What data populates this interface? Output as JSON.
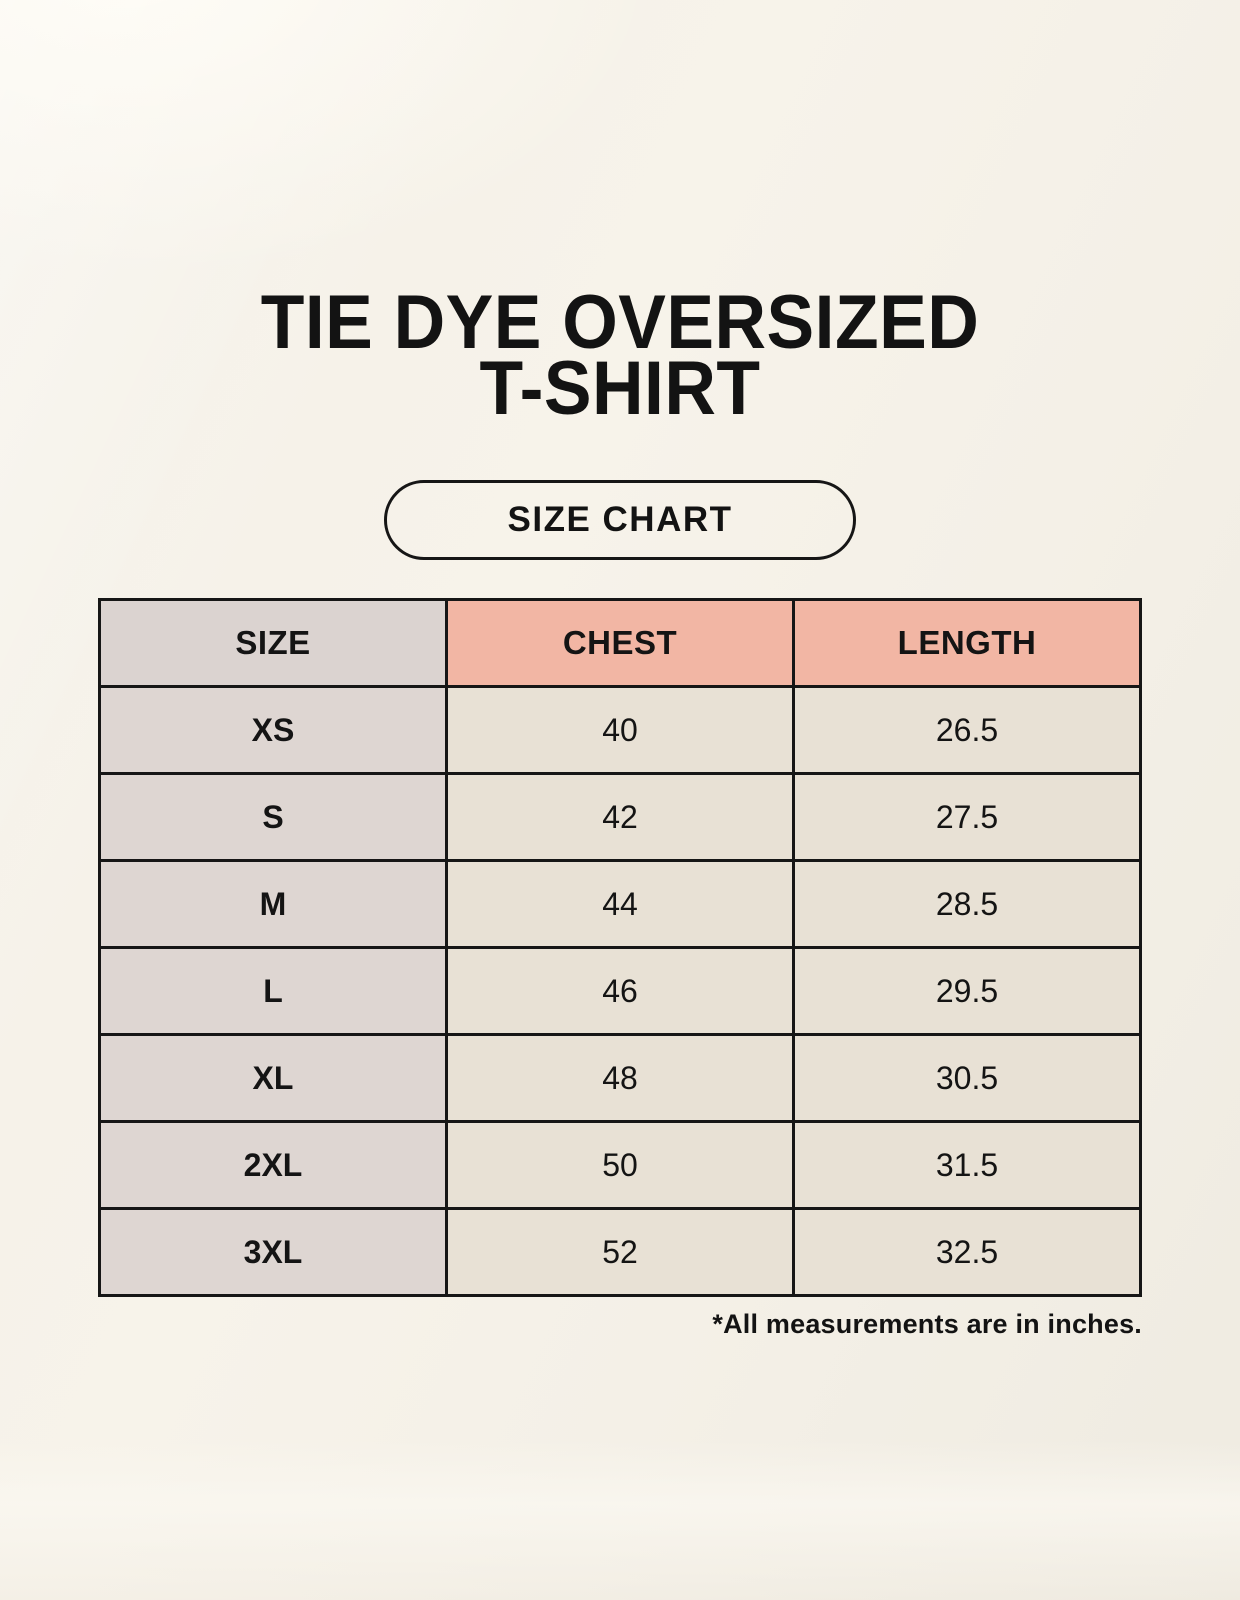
{
  "header": {
    "title_line1": "TIE DYE OVERSIZED",
    "title_line2": "T-SHIRT",
    "badge_label": "SIZE CHART"
  },
  "chart_data": {
    "type": "table",
    "columns": [
      "SIZE",
      "CHEST",
      "LENGTH"
    ],
    "units": "inches",
    "rows": [
      {
        "size": "XS",
        "chest": "40",
        "length": "26.5"
      },
      {
        "size": "S",
        "chest": "42",
        "length": "27.5"
      },
      {
        "size": "M",
        "chest": "44",
        "length": "28.5"
      },
      {
        "size": "L",
        "chest": "46",
        "length": "29.5"
      },
      {
        "size": "XL",
        "chest": "48",
        "length": "30.5"
      },
      {
        "size": "2XL",
        "chest": "50",
        "length": "31.5"
      },
      {
        "size": "3XL",
        "chest": "52",
        "length": "32.5"
      }
    ]
  },
  "footnote": "*All measurements are in inches.",
  "colors": {
    "background": "#f5f1e8",
    "header_accent": "#f2b6a4",
    "size_column_header": "#dbd3d0",
    "size_column_cell": "#ded6d2",
    "data_cell": "#e8e1d5",
    "border": "#161616",
    "text": "#131313"
  }
}
